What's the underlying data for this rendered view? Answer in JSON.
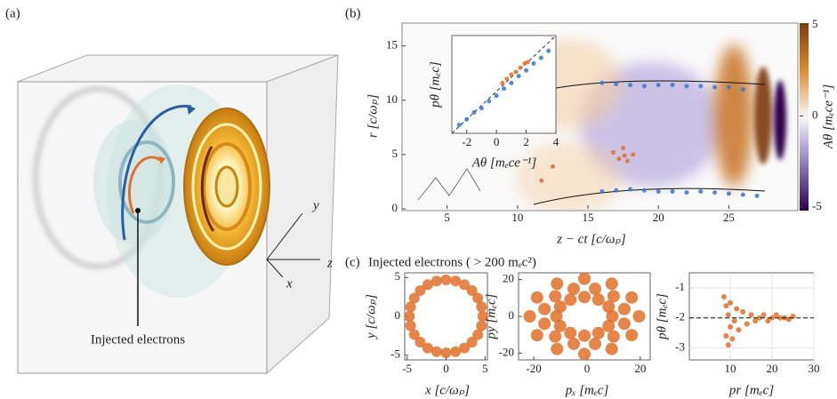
{
  "panel_labels": [
    "(a)",
    "(b)",
    "(c)"
  ],
  "illustration": {
    "axis_labels": [
      "y",
      "z",
      "x"
    ],
    "annotation": "Injected electrons"
  },
  "panel_c_title": "Injected electrons ( > 200 mₑc²)",
  "chart_data": [
    {
      "type": "scatter",
      "xlabel": "z − ct [c/ωₚ]",
      "ylabel": "r [c/ωₚ]",
      "xlim": [
        1.8,
        29.9
      ],
      "ylim": [
        0,
        17.1
      ],
      "xticks": [
        5,
        10,
        15,
        20,
        25
      ],
      "yticks": [
        0,
        5,
        10,
        15
      ],
      "colorbar": {
        "label": "Aθ [mₑce⁻¹]",
        "lim": [
          -5,
          5
        ],
        "ticks": [
          5,
          0,
          -5
        ]
      },
      "series": [
        {
          "color": "#3a78c9",
          "x": [
            16,
            17,
            18,
            19,
            20,
            21,
            22,
            23,
            24,
            25,
            26,
            16,
            17,
            18,
            19,
            20,
            21,
            22,
            23,
            24,
            25,
            26,
            27
          ],
          "y": [
            11.6,
            11.5,
            11.4,
            11.3,
            11.4,
            11.4,
            11.3,
            11.3,
            11.2,
            11.2,
            11.0,
            1.6,
            1.7,
            1.8,
            1.7,
            1.6,
            1.6,
            1.5,
            1.6,
            1.5,
            1.4,
            1.3,
            1.2
          ]
        },
        {
          "color": "#e0702a",
          "x": [
            16.8,
            17.2,
            17.5,
            17.8,
            18.2,
            17.6,
            12.5,
            11.7
          ],
          "y": [
            5.2,
            4.6,
            5.6,
            4.4,
            5.0,
            4.9,
            3.9,
            2.6
          ]
        }
      ]
    },
    {
      "type": "scatter",
      "xlabel": "Aθ [mₑce⁻¹]",
      "ylabel": "pθ [mₑc]",
      "xlim": [
        -3,
        4
      ],
      "ylim": [
        -3,
        4
      ],
      "xticks": [
        -2,
        0,
        2,
        4
      ],
      "diagonal": true,
      "series": [
        {
          "color": "#3a78c9",
          "x": [
            -2.5,
            -2,
            -1.5,
            -1,
            -0.5,
            0,
            0.5,
            1,
            1.5,
            2,
            2.5,
            3,
            3.5
          ],
          "y": [
            -2.4,
            -2.0,
            -1.5,
            -1.2,
            -0.7,
            -0.3,
            0.2,
            0.6,
            1.1,
            1.5,
            2.0,
            2.4,
            2.9
          ]
        },
        {
          "color": "#e0702a",
          "x": [
            0.4,
            0.7,
            1,
            1.3,
            1.6,
            1.9,
            2.1
          ],
          "y": [
            0.6,
            0.9,
            1.2,
            1.4,
            1.7,
            2.0,
            2.1
          ]
        }
      ]
    },
    {
      "type": "scatter",
      "xlabel": "x [c/ωₚ]",
      "ylabel": "y [c/ωₚ]",
      "xlim": [
        -5.3,
        5.3
      ],
      "ylim": [
        -5.6,
        5.6
      ],
      "xticks": [
        -5,
        0,
        5
      ],
      "yticks": [
        -5,
        0,
        5
      ],
      "series": [
        {
          "color": "#e0702a",
          "x": [
            4.7,
            4.54,
            4.07,
            3.32,
            2.35,
            1.22,
            0,
            -1.22,
            -2.35,
            -3.32,
            -4.07,
            -4.54,
            -4.7,
            -4.54,
            -4.07,
            -3.32,
            -2.35,
            -1.22,
            0,
            1.22,
            2.35,
            3.32,
            4.07,
            4.54
          ],
          "y": [
            0,
            1.22,
            2.35,
            3.32,
            4.07,
            4.54,
            4.7,
            4.54,
            4.07,
            3.32,
            2.35,
            1.22,
            0,
            -1.22,
            -2.35,
            -3.32,
            -4.07,
            -4.54,
            -4.7,
            -4.54,
            -4.07,
            -3.32,
            -2.35,
            -1.22
          ]
        }
      ]
    },
    {
      "type": "scatter",
      "xlabel": "pₓ [mₑc]",
      "ylabel": "py [mₑc]",
      "xlim": [
        -25.7,
        23.7
      ],
      "ylim": [
        -23.7,
        23.7
      ],
      "xticks": [
        -20,
        0,
        20
      ],
      "yticks": [
        -20,
        0,
        20
      ],
      "series": [
        {
          "color": "#e0702a",
          "x": [
            9.5,
            8.09,
            4.25,
            -1,
            -6.25,
            -10.09,
            -11.5,
            -10.09,
            -6.25,
            -1,
            4.25,
            8.09,
            13.97,
            9.96,
            3.01,
            -5.01,
            -11.96,
            -15.97,
            -15.97,
            -11.96,
            -5.01,
            3.01,
            9.96,
            13.97,
            19.5,
            16.75,
            9.25,
            -1,
            -11.25,
            -18.75,
            -21.5,
            -18.75,
            -11.25,
            -1,
            9.25,
            16.75
          ],
          "y": [
            0,
            5.25,
            9.09,
            10.5,
            9.09,
            5.25,
            0,
            -5.25,
            -9.09,
            -10.5,
            -9.09,
            -5.25,
            4.01,
            10.96,
            14.97,
            14.97,
            10.96,
            4.01,
            -4.01,
            -10.96,
            -14.97,
            -14.97,
            -10.96,
            -4.01,
            0,
            10.25,
            17.75,
            20.5,
            17.75,
            10.25,
            0,
            -10.25,
            -17.75,
            -20.5,
            -17.75,
            -10.25
          ]
        }
      ]
    },
    {
      "type": "scatter",
      "xlabel": "pr [mₑc]",
      "ylabel": "pθ [mₑc]",
      "xlim": [
        0.2,
        30
      ],
      "ylim": [
        -3.4,
        -0.5
      ],
      "xticks": [
        10,
        20,
        30
      ],
      "yticks": [
        -1,
        -2,
        -3
      ],
      "grid": true,
      "hline": -2,
      "series": [
        {
          "color": "#e0702a",
          "x": [
            8.5,
            9,
            9,
            9.5,
            9.5,
            10,
            10,
            10.5,
            11,
            11.5,
            12,
            13,
            14,
            15,
            16,
            17,
            18,
            19,
            20,
            21,
            22,
            23,
            24,
            25
          ],
          "y": [
            -1.3,
            -2.6,
            -1.6,
            -2.9,
            -1.9,
            -2.3,
            -1.5,
            -2.7,
            -2.1,
            -1.7,
            -2.4,
            -1.8,
            -2.2,
            -1.9,
            -2.1,
            -2.0,
            -1.9,
            -2.1,
            -2.0,
            -1.9,
            -2.0,
            -2.0,
            -2.05,
            -1.95
          ]
        }
      ]
    }
  ]
}
